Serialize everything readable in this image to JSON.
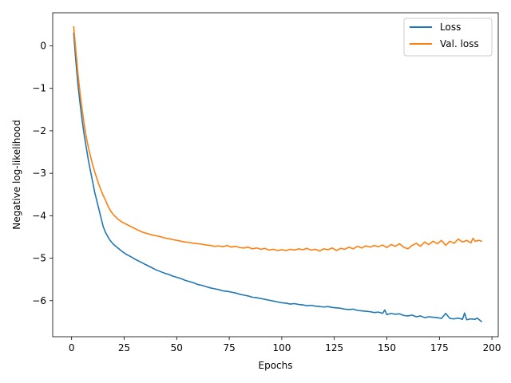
{
  "chart_data": {
    "type": "line",
    "title": "",
    "xlabel": "Epochs",
    "ylabel": "Negative log-likelihood",
    "xlim": [
      -9,
      203
    ],
    "ylim": [
      -6.85,
      0.78
    ],
    "xticks": [
      0,
      25,
      50,
      75,
      100,
      125,
      150,
      175,
      200
    ],
    "yticks": [
      0,
      -1,
      -2,
      -3,
      -4,
      -5,
      -6
    ],
    "grid": false,
    "legend_position": "top-right",
    "series": [
      {
        "name": "Loss",
        "color": "#1f77b4",
        "points": [
          [
            1,
            0.3
          ],
          [
            2,
            -0.35
          ],
          [
            3,
            -0.9
          ],
          [
            4,
            -1.35
          ],
          [
            5,
            -1.75
          ],
          [
            6,
            -2.1
          ],
          [
            7,
            -2.4
          ],
          [
            8,
            -2.7
          ],
          [
            9,
            -2.95
          ],
          [
            10,
            -3.2
          ],
          [
            11,
            -3.45
          ],
          [
            12,
            -3.65
          ],
          [
            13,
            -3.85
          ],
          [
            14,
            -4.05
          ],
          [
            15,
            -4.25
          ],
          [
            16,
            -4.38
          ],
          [
            17,
            -4.47
          ],
          [
            18,
            -4.56
          ],
          [
            19,
            -4.62
          ],
          [
            20,
            -4.68
          ],
          [
            22,
            -4.76
          ],
          [
            24,
            -4.84
          ],
          [
            26,
            -4.91
          ],
          [
            28,
            -4.96
          ],
          [
            30,
            -5.02
          ],
          [
            32,
            -5.07
          ],
          [
            34,
            -5.12
          ],
          [
            36,
            -5.17
          ],
          [
            38,
            -5.22
          ],
          [
            40,
            -5.27
          ],
          [
            42,
            -5.31
          ],
          [
            44,
            -5.35
          ],
          [
            46,
            -5.38
          ],
          [
            48,
            -5.42
          ],
          [
            50,
            -5.45
          ],
          [
            52,
            -5.48
          ],
          [
            54,
            -5.52
          ],
          [
            56,
            -5.55
          ],
          [
            58,
            -5.58
          ],
          [
            60,
            -5.62
          ],
          [
            62,
            -5.64
          ],
          [
            64,
            -5.67
          ],
          [
            66,
            -5.7
          ],
          [
            68,
            -5.72
          ],
          [
            70,
            -5.74
          ],
          [
            72,
            -5.77
          ],
          [
            74,
            -5.78
          ],
          [
            76,
            -5.8
          ],
          [
            78,
            -5.82
          ],
          [
            80,
            -5.85
          ],
          [
            82,
            -5.87
          ],
          [
            84,
            -5.89
          ],
          [
            86,
            -5.92
          ],
          [
            88,
            -5.93
          ],
          [
            90,
            -5.95
          ],
          [
            92,
            -5.97
          ],
          [
            94,
            -5.99
          ],
          [
            96,
            -6.01
          ],
          [
            98,
            -6.03
          ],
          [
            100,
            -6.05
          ],
          [
            102,
            -6.06
          ],
          [
            104,
            -6.08
          ],
          [
            106,
            -6.07
          ],
          [
            108,
            -6.09
          ],
          [
            110,
            -6.1
          ],
          [
            112,
            -6.12
          ],
          [
            114,
            -6.11
          ],
          [
            116,
            -6.13
          ],
          [
            118,
            -6.14
          ],
          [
            120,
            -6.15
          ],
          [
            122,
            -6.14
          ],
          [
            124,
            -6.16
          ],
          [
            126,
            -6.17
          ],
          [
            128,
            -6.18
          ],
          [
            130,
            -6.2
          ],
          [
            132,
            -6.21
          ],
          [
            134,
            -6.2
          ],
          [
            136,
            -6.23
          ],
          [
            138,
            -6.24
          ],
          [
            140,
            -6.25
          ],
          [
            142,
            -6.26
          ],
          [
            144,
            -6.28
          ],
          [
            146,
            -6.27
          ],
          [
            148,
            -6.3
          ],
          [
            149,
            -6.22
          ],
          [
            150,
            -6.33
          ],
          [
            152,
            -6.3
          ],
          [
            154,
            -6.32
          ],
          [
            156,
            -6.31
          ],
          [
            158,
            -6.35
          ],
          [
            160,
            -6.36
          ],
          [
            162,
            -6.34
          ],
          [
            164,
            -6.38
          ],
          [
            166,
            -6.36
          ],
          [
            168,
            -6.4
          ],
          [
            170,
            -6.38
          ],
          [
            172,
            -6.39
          ],
          [
            174,
            -6.4
          ],
          [
            176,
            -6.42
          ],
          [
            178,
            -6.3
          ],
          [
            180,
            -6.42
          ],
          [
            182,
            -6.43
          ],
          [
            184,
            -6.41
          ],
          [
            186,
            -6.44
          ],
          [
            187,
            -6.29
          ],
          [
            188,
            -6.45
          ],
          [
            190,
            -6.43
          ],
          [
            192,
            -6.44
          ],
          [
            193,
            -6.41
          ],
          [
            195,
            -6.49
          ]
        ]
      },
      {
        "name": "Val. loss",
        "color": "#ff7f0e",
        "points": [
          [
            1,
            0.45
          ],
          [
            2,
            -0.1
          ],
          [
            3,
            -0.65
          ],
          [
            4,
            -1.1
          ],
          [
            5,
            -1.5
          ],
          [
            6,
            -1.85
          ],
          [
            7,
            -2.15
          ],
          [
            8,
            -2.4
          ],
          [
            9,
            -2.6
          ],
          [
            10,
            -2.8
          ],
          [
            11,
            -2.97
          ],
          [
            12,
            -3.12
          ],
          [
            13,
            -3.27
          ],
          [
            14,
            -3.4
          ],
          [
            15,
            -3.52
          ],
          [
            16,
            -3.62
          ],
          [
            17,
            -3.74
          ],
          [
            18,
            -3.84
          ],
          [
            19,
            -3.92
          ],
          [
            20,
            -3.98
          ],
          [
            22,
            -4.08
          ],
          [
            24,
            -4.15
          ],
          [
            26,
            -4.2
          ],
          [
            28,
            -4.25
          ],
          [
            30,
            -4.3
          ],
          [
            32,
            -4.35
          ],
          [
            34,
            -4.39
          ],
          [
            36,
            -4.42
          ],
          [
            38,
            -4.45
          ],
          [
            40,
            -4.47
          ],
          [
            42,
            -4.49
          ],
          [
            44,
            -4.52
          ],
          [
            46,
            -4.54
          ],
          [
            48,
            -4.56
          ],
          [
            50,
            -4.58
          ],
          [
            52,
            -4.6
          ],
          [
            54,
            -4.62
          ],
          [
            56,
            -4.63
          ],
          [
            58,
            -4.65
          ],
          [
            60,
            -4.66
          ],
          [
            62,
            -4.67
          ],
          [
            64,
            -4.69
          ],
          [
            66,
            -4.7
          ],
          [
            68,
            -4.72
          ],
          [
            70,
            -4.71
          ],
          [
            72,
            -4.73
          ],
          [
            74,
            -4.7
          ],
          [
            76,
            -4.74
          ],
          [
            78,
            -4.72
          ],
          [
            80,
            -4.75
          ],
          [
            82,
            -4.76
          ],
          [
            84,
            -4.74
          ],
          [
            86,
            -4.78
          ],
          [
            88,
            -4.76
          ],
          [
            90,
            -4.79
          ],
          [
            92,
            -4.77
          ],
          [
            94,
            -4.81
          ],
          [
            96,
            -4.79
          ],
          [
            98,
            -4.82
          ],
          [
            100,
            -4.8
          ],
          [
            102,
            -4.82
          ],
          [
            104,
            -4.79
          ],
          [
            106,
            -4.81
          ],
          [
            108,
            -4.78
          ],
          [
            110,
            -4.8
          ],
          [
            112,
            -4.77
          ],
          [
            114,
            -4.81
          ],
          [
            116,
            -4.79
          ],
          [
            118,
            -4.83
          ],
          [
            120,
            -4.78
          ],
          [
            122,
            -4.8
          ],
          [
            124,
            -4.76
          ],
          [
            126,
            -4.82
          ],
          [
            128,
            -4.77
          ],
          [
            130,
            -4.79
          ],
          [
            132,
            -4.74
          ],
          [
            134,
            -4.78
          ],
          [
            136,
            -4.72
          ],
          [
            138,
            -4.76
          ],
          [
            140,
            -4.71
          ],
          [
            142,
            -4.74
          ],
          [
            144,
            -4.7
          ],
          [
            146,
            -4.73
          ],
          [
            148,
            -4.69
          ],
          [
            150,
            -4.75
          ],
          [
            152,
            -4.68
          ],
          [
            154,
            -4.72
          ],
          [
            156,
            -4.66
          ],
          [
            158,
            -4.74
          ],
          [
            160,
            -4.78
          ],
          [
            162,
            -4.7
          ],
          [
            164,
            -4.65
          ],
          [
            166,
            -4.72
          ],
          [
            168,
            -4.62
          ],
          [
            170,
            -4.68
          ],
          [
            172,
            -4.6
          ],
          [
            174,
            -4.66
          ],
          [
            176,
            -4.58
          ],
          [
            178,
            -4.7
          ],
          [
            180,
            -4.6
          ],
          [
            182,
            -4.65
          ],
          [
            184,
            -4.55
          ],
          [
            186,
            -4.62
          ],
          [
            188,
            -4.58
          ],
          [
            190,
            -4.64
          ],
          [
            191,
            -4.53
          ],
          [
            192,
            -4.6
          ],
          [
            194,
            -4.58
          ],
          [
            195,
            -4.6
          ]
        ]
      }
    ]
  }
}
